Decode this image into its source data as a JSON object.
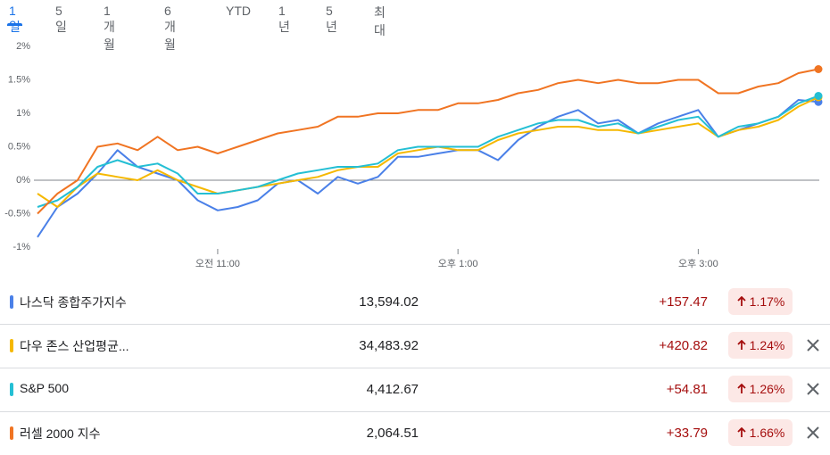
{
  "tabs": [
    "1일",
    "5일",
    "1개월",
    "6개월",
    "YTD",
    "1년",
    "5년",
    "최대"
  ],
  "chart_data": {
    "type": "line",
    "x": [
      570,
      580,
      590,
      600,
      610,
      620,
      630,
      640,
      650,
      660,
      670,
      680,
      690,
      700,
      710,
      720,
      730,
      740,
      750,
      760,
      770,
      780,
      790,
      800,
      810,
      820,
      830,
      840,
      850,
      860,
      870,
      880,
      890,
      900,
      910,
      920,
      930,
      940,
      950,
      960
    ],
    "xlim": [
      570,
      960
    ],
    "xticks": [
      {
        "value": 660,
        "label": "오전 11:00"
      },
      {
        "value": 780,
        "label": "오후 1:00"
      },
      {
        "value": 900,
        "label": "오후 3:00"
      }
    ],
    "ylim": [
      -1,
      2
    ],
    "yticks": [
      {
        "value": -1,
        "label": "-1%"
      },
      {
        "value": -0.5,
        "label": "-0.5%"
      },
      {
        "value": 0,
        "label": "0%"
      },
      {
        "value": 0.5,
        "label": "0.5%"
      },
      {
        "value": 1,
        "label": "1%"
      },
      {
        "value": 1.5,
        "label": "1.5%"
      },
      {
        "value": 2,
        "label": "2%"
      }
    ],
    "series": [
      {
        "name": "나스닥 종합주가지수",
        "color": "#4a80e8",
        "values": [
          -0.85,
          -0.4,
          -0.2,
          0.1,
          0.45,
          0.2,
          0.1,
          0.0,
          -0.3,
          -0.45,
          -0.4,
          -0.3,
          -0.05,
          0.0,
          -0.2,
          0.05,
          -0.05,
          0.05,
          0.35,
          0.35,
          0.4,
          0.45,
          0.45,
          0.3,
          0.6,
          0.8,
          0.95,
          1.05,
          0.85,
          0.9,
          0.7,
          0.85,
          0.95,
          1.05,
          0.65,
          0.75,
          0.85,
          0.95,
          1.2,
          1.17
        ]
      },
      {
        "name": "다우 존스 산업평균...",
        "color": "#f5b800",
        "values": [
          -0.2,
          -0.4,
          -0.1,
          0.1,
          0.05,
          0.0,
          0.15,
          0.0,
          -0.1,
          -0.2,
          -0.15,
          -0.1,
          -0.05,
          0.0,
          0.05,
          0.15,
          0.2,
          0.2,
          0.4,
          0.45,
          0.5,
          0.45,
          0.45,
          0.6,
          0.7,
          0.75,
          0.8,
          0.8,
          0.75,
          0.75,
          0.7,
          0.75,
          0.8,
          0.85,
          0.65,
          0.75,
          0.8,
          0.9,
          1.1,
          1.24
        ]
      },
      {
        "name": "S&P 500",
        "color": "#24bfd4",
        "values": [
          -0.4,
          -0.3,
          -0.1,
          0.2,
          0.3,
          0.2,
          0.25,
          0.1,
          -0.2,
          -0.2,
          -0.15,
          -0.1,
          0.0,
          0.1,
          0.15,
          0.2,
          0.2,
          0.25,
          0.45,
          0.5,
          0.5,
          0.5,
          0.5,
          0.65,
          0.75,
          0.85,
          0.9,
          0.9,
          0.8,
          0.85,
          0.7,
          0.8,
          0.9,
          0.95,
          0.65,
          0.8,
          0.85,
          0.95,
          1.15,
          1.26
        ]
      },
      {
        "name": "러셀 2000 지수",
        "color": "#f07422",
        "values": [
          -0.5,
          -0.2,
          0,
          0.5,
          0.55,
          0.45,
          0.65,
          0.45,
          0.5,
          0.4,
          0.5,
          0.6,
          0.7,
          0.75,
          0.8,
          0.95,
          0.95,
          1.0,
          1.0,
          1.05,
          1.05,
          1.15,
          1.15,
          1.2,
          1.3,
          1.35,
          1.45,
          1.5,
          1.45,
          1.5,
          1.45,
          1.45,
          1.5,
          1.5,
          1.3,
          1.3,
          1.4,
          1.45,
          1.6,
          1.66
        ]
      }
    ]
  },
  "quotes": [
    {
      "price": "13,594.02",
      "change": "+157.47",
      "change_pct": "1.17%",
      "removable": false
    },
    {
      "price": "34,483.92",
      "change": "+420.82",
      "change_pct": "1.24%",
      "removable": true
    },
    {
      "price": "4,412.67",
      "change": "+54.81",
      "change_pct": "1.26%",
      "removable": true
    },
    {
      "price": "2,064.51",
      "change": "+33.79",
      "change_pct": "1.66%",
      "removable": true
    }
  ]
}
